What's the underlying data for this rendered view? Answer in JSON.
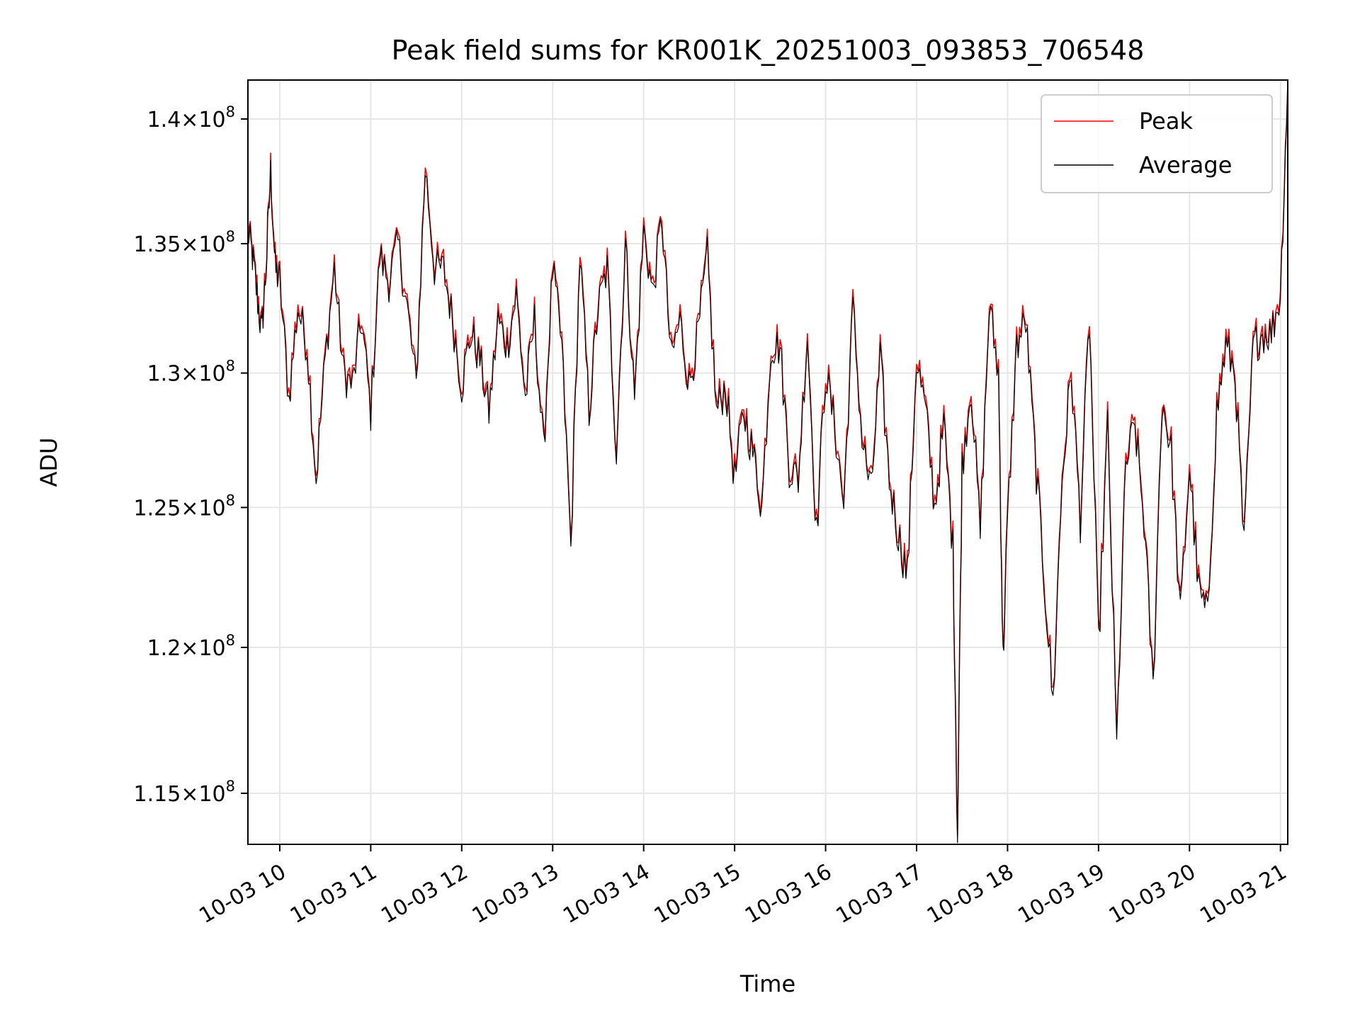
{
  "chart_data": {
    "type": "line",
    "title": "Peak field sums for KR001K_20251003_093853_706548",
    "xlabel": "Time",
    "ylabel": "ADU",
    "x_unit": "hours since 10-03 00:00",
    "xlim": [
      9.65,
      21.08
    ],
    "ylim": [
      113300000,
      141600000
    ],
    "yscale": "log",
    "grid": true,
    "legend_position": "top-right",
    "xticks": [
      {
        "value": 10,
        "label": "10-03 10"
      },
      {
        "value": 11,
        "label": "10-03 11"
      },
      {
        "value": 12,
        "label": "10-03 12"
      },
      {
        "value": 13,
        "label": "10-03 13"
      },
      {
        "value": 14,
        "label": "10-03 14"
      },
      {
        "value": 15,
        "label": "10-03 15"
      },
      {
        "value": 16,
        "label": "10-03 16"
      },
      {
        "value": 17,
        "label": "10-03 17"
      },
      {
        "value": 18,
        "label": "10-03 18"
      },
      {
        "value": 19,
        "label": "10-03 19"
      },
      {
        "value": 20,
        "label": "10-03 20"
      },
      {
        "value": 21,
        "label": "10-03 21"
      }
    ],
    "yticks": [
      {
        "value": 115000000,
        "mantissa": "1.15",
        "exp": "8"
      },
      {
        "value": 120000000,
        "mantissa": "1.2",
        "exp": "8"
      },
      {
        "value": 125000000,
        "mantissa": "1.25",
        "exp": "8"
      },
      {
        "value": 130000000,
        "mantissa": "1.3",
        "exp": "8"
      },
      {
        "value": 135000000,
        "mantissa": "1.35",
        "exp": "8"
      },
      {
        "value": 140000000,
        "mantissa": "1.4",
        "exp": "8"
      }
    ],
    "series": [
      {
        "name": "Peak",
        "color": "#ff0000",
        "offset": 300000,
        "x": [
          9.65,
          9.7,
          9.75,
          9.8,
          9.85,
          9.9,
          9.95,
          10.0,
          10.1,
          10.2,
          10.3,
          10.4,
          10.5,
          10.6,
          10.7,
          10.8,
          10.9,
          11.0,
          11.1,
          11.2,
          11.3,
          11.4,
          11.5,
          11.6,
          11.7,
          11.8,
          11.9,
          12.0,
          12.1,
          12.2,
          12.3,
          12.4,
          12.5,
          12.6,
          12.7,
          12.8,
          12.9,
          13.0,
          13.1,
          13.2,
          13.3,
          13.4,
          13.5,
          13.6,
          13.7,
          13.8,
          13.9,
          14.0,
          14.1,
          14.2,
          14.3,
          14.4,
          14.5,
          14.6,
          14.7,
          14.8,
          14.9,
          15.0,
          15.1,
          15.2,
          15.3,
          15.4,
          15.5,
          15.6,
          15.7,
          15.8,
          15.9,
          16.0,
          16.1,
          16.2,
          16.3,
          16.4,
          16.5,
          16.6,
          16.7,
          16.8,
          16.9,
          17.0,
          17.1,
          17.2,
          17.3,
          17.4,
          17.45,
          17.5,
          17.6,
          17.7,
          17.8,
          17.9,
          17.95,
          18.0,
          18.1,
          18.2,
          18.3,
          18.4,
          18.5,
          18.6,
          18.7,
          18.8,
          18.9,
          19.0,
          19.1,
          19.2,
          19.3,
          19.4,
          19.5,
          19.6,
          19.7,
          19.8,
          19.9,
          20.0,
          20.1,
          20.2,
          20.3,
          20.4,
          20.5,
          20.6,
          20.7,
          20.8,
          20.9,
          21.0,
          21.08
        ],
        "values": [
          135500000,
          134500000,
          133000000,
          131500000,
          134000000,
          137800000,
          134000000,
          133500000,
          129000000,
          132500000,
          131000000,
          126000000,
          130500000,
          134000000,
          130000000,
          129500000,
          132000000,
          128500000,
          134500000,
          133500000,
          135000000,
          132500000,
          129500000,
          138000000,
          134000000,
          134000000,
          132000000,
          129500000,
          131500000,
          130500000,
          128500000,
          132000000,
          131000000,
          133000000,
          129000000,
          132000000,
          127000000,
          134000000,
          131000000,
          123500000,
          134500000,
          128500000,
          132500000,
          134000000,
          127000000,
          135000000,
          129000000,
          135500000,
          133000000,
          136000000,
          130500000,
          132000000,
          129500000,
          131500000,
          134500000,
          128500000,
          129500000,
          126000000,
          128500000,
          127000000,
          125000000,
          131000000,
          131000000,
          126500000,
          126000000,
          131500000,
          124000000,
          130000000,
          128000000,
          125000000,
          132500000,
          127500000,
          125500000,
          130500000,
          126000000,
          124000000,
          122500000,
          130500000,
          128500000,
          125000000,
          128000000,
          123500000,
          113500000,
          126500000,
          129500000,
          124000000,
          132500000,
          130000000,
          119500000,
          124500000,
          131000000,
          132000000,
          127000000,
          122500000,
          118000000,
          126000000,
          130000000,
          124500000,
          132000000,
          120000000,
          128000000,
          116500000,
          126500000,
          128000000,
          124500000,
          118500000,
          129000000,
          127000000,
          121000000,
          126500000,
          122000000,
          121000000,
          128500000,
          131000000,
          130000000,
          123500000,
          131000000,
          131500000,
          131500000,
          133000000,
          141500000
        ]
      },
      {
        "name": "Average",
        "color": "#000000",
        "offset": 0,
        "x": [
          9.65,
          9.7,
          9.75,
          9.8,
          9.85,
          9.9,
          9.95,
          10.0,
          10.1,
          10.2,
          10.3,
          10.4,
          10.5,
          10.6,
          10.7,
          10.8,
          10.9,
          11.0,
          11.1,
          11.2,
          11.3,
          11.4,
          11.5,
          11.6,
          11.7,
          11.8,
          11.9,
          12.0,
          12.1,
          12.2,
          12.3,
          12.4,
          12.5,
          12.6,
          12.7,
          12.8,
          12.9,
          13.0,
          13.1,
          13.2,
          13.3,
          13.4,
          13.5,
          13.6,
          13.7,
          13.8,
          13.9,
          14.0,
          14.1,
          14.2,
          14.3,
          14.4,
          14.5,
          14.6,
          14.7,
          14.8,
          14.9,
          15.0,
          15.1,
          15.2,
          15.3,
          15.4,
          15.5,
          15.6,
          15.7,
          15.8,
          15.9,
          16.0,
          16.1,
          16.2,
          16.3,
          16.4,
          16.5,
          16.6,
          16.7,
          16.8,
          16.9,
          17.0,
          17.1,
          17.2,
          17.3,
          17.4,
          17.45,
          17.5,
          17.6,
          17.7,
          17.8,
          17.9,
          17.95,
          18.0,
          18.1,
          18.2,
          18.3,
          18.4,
          18.5,
          18.6,
          18.7,
          18.8,
          18.9,
          19.0,
          19.1,
          19.2,
          19.3,
          19.4,
          19.5,
          19.6,
          19.7,
          19.8,
          19.9,
          20.0,
          20.1,
          20.2,
          20.3,
          20.4,
          20.5,
          20.6,
          20.7,
          20.8,
          20.9,
          21.0,
          21.08
        ],
        "values": [
          135500000,
          134500000,
          133000000,
          131500000,
          134000000,
          137800000,
          134000000,
          133500000,
          129000000,
          132500000,
          131000000,
          126000000,
          130500000,
          134000000,
          130000000,
          129500000,
          132000000,
          128500000,
          134500000,
          133500000,
          135000000,
          132500000,
          129500000,
          138000000,
          134000000,
          134000000,
          132000000,
          129500000,
          131500000,
          130500000,
          128500000,
          132000000,
          131000000,
          133000000,
          129000000,
          132000000,
          127000000,
          134000000,
          131000000,
          123500000,
          134500000,
          128500000,
          132500000,
          134000000,
          127000000,
          135000000,
          129000000,
          135500000,
          133000000,
          136000000,
          130500000,
          132000000,
          129500000,
          131500000,
          134500000,
          128500000,
          129500000,
          126000000,
          128500000,
          127000000,
          125000000,
          131000000,
          131000000,
          126500000,
          126000000,
          131500000,
          124000000,
          130000000,
          128000000,
          125000000,
          132500000,
          127500000,
          125500000,
          130500000,
          126000000,
          124000000,
          122500000,
          130500000,
          128500000,
          125000000,
          128000000,
          123500000,
          113500000,
          126500000,
          129500000,
          124000000,
          132500000,
          130000000,
          119500000,
          124500000,
          131000000,
          132000000,
          127000000,
          122500000,
          118000000,
          126000000,
          130000000,
          124500000,
          132000000,
          120000000,
          128000000,
          116500000,
          126500000,
          128000000,
          124500000,
          118500000,
          129000000,
          127000000,
          121000000,
          126500000,
          122000000,
          121000000,
          128500000,
          131000000,
          130000000,
          123500000,
          131000000,
          131500000,
          131500000,
          133000000,
          141500000
        ]
      }
    ]
  }
}
